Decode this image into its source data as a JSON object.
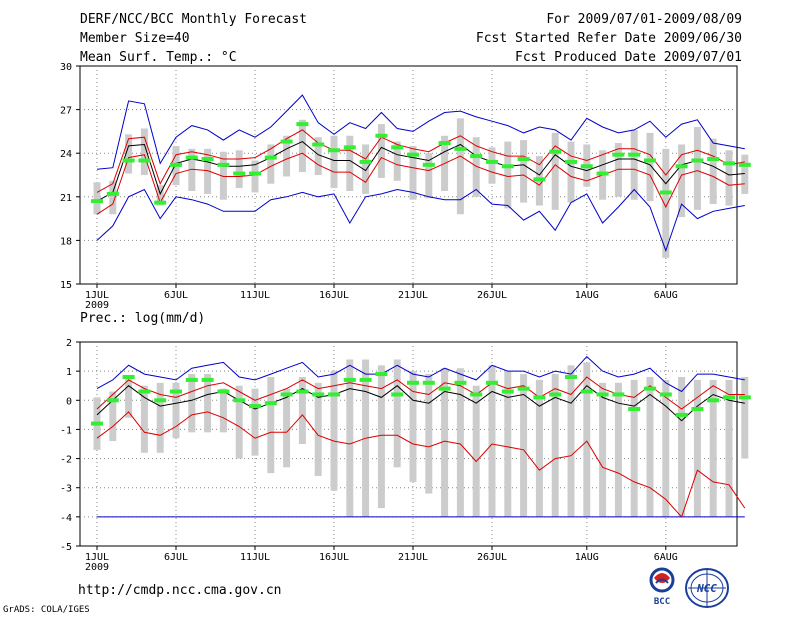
{
  "header": {
    "model": "DERF/NCC/BCC Monthly Forecast",
    "members": "Member Size=40",
    "variable": "Mean Surf. Temp.: °C",
    "period": "For 2009/07/01-2009/08/09",
    "refer_date": "Fcst Started Refer Date 2009/06/30",
    "produced_date": "Fcst Produced Date 2009/07/01"
  },
  "precip_title": "Prec.: log(mm/d)",
  "footer": {
    "url": "http://cmdp.ncc.cma.gov.cn",
    "grads": "GrADS: COLA/IGES",
    "logo_bcc": "BCC",
    "logo_ncc": "NCC"
  },
  "colors": {
    "box": "#cccccc",
    "median": "#33ee33",
    "mean": "#000000",
    "spread": "#dd0000",
    "extreme": "#0000cc",
    "grid": "#888888"
  },
  "chart_data": [
    {
      "type": "line",
      "title": "Mean Surf. Temp.: °C",
      "xlabel": "",
      "ylabel": "°C",
      "ylim": [
        15,
        30
      ],
      "yticks": [
        15,
        18,
        21,
        24,
        27,
        30
      ],
      "grid": true,
      "x_ticks": [
        {
          "day": 1,
          "label": "1JUL"
        },
        {
          "day": 6,
          "label": "6JUL"
        },
        {
          "day": 11,
          "label": "11JUL"
        },
        {
          "day": 16,
          "label": "16JUL"
        },
        {
          "day": 21,
          "label": "21JUL"
        },
        {
          "day": 26,
          "label": "26JUL"
        },
        {
          "day": 32,
          "label": "1AUG"
        },
        {
          "day": 37,
          "label": "6AUG"
        }
      ],
      "year_label": "2009",
      "series": [
        {
          "name": "max",
          "values": [
            18,
            19,
            21,
            21.5,
            19.5,
            21,
            20.8,
            20.5,
            20,
            20,
            20,
            20.8,
            21,
            21.3,
            21,
            21.2,
            19.2,
            21,
            21.2,
            21.5,
            21.3,
            21,
            20.8,
            20.8,
            21.5,
            20.5,
            20.4,
            19.4,
            20,
            18.7,
            20.6,
            21.2,
            19.2,
            20.3,
            21.5,
            20.3,
            17.3,
            20.5,
            19.5,
            20,
            20.2,
            20.4
          ]
        },
        {
          "name": "min",
          "values": [
            22.9,
            23,
            27.6,
            27.4,
            23.3,
            25.1,
            25.9,
            25.6,
            24.9,
            25.6,
            25.1,
            25.8,
            26.9,
            28,
            26.1,
            25.3,
            26.1,
            25.7,
            26.8,
            25.7,
            25.5,
            26.2,
            26.8,
            26.9,
            26.5,
            26.2,
            25.9,
            25.4,
            25.8,
            25.6,
            24.9,
            26.4,
            25.8,
            25.4,
            25.6,
            26.2,
            25.1,
            26,
            26.3,
            24.7,
            24.5,
            24.3
          ]
        }
      ],
      "mean": [
        20.7,
        21.3,
        24.5,
        24.6,
        21.2,
        23.3,
        23.6,
        23.4,
        23.1,
        23.1,
        23.2,
        23.7,
        24.3,
        24.8,
        23.9,
        23.5,
        23.5,
        22.8,
        24.4,
        23.9,
        23.7,
        23.5,
        24.1,
        24.6,
        23.8,
        23.4,
        23.1,
        23.2,
        22.5,
        23.9,
        23.1,
        22.8,
        23.2,
        23.6,
        23.6,
        23.2,
        21.9,
        23.2,
        23.5,
        23.1,
        22.5,
        22.6
      ],
      "upper": [
        21.3,
        21.9,
        25,
        25.1,
        21.9,
        23.9,
        24.1,
        23.9,
        23.6,
        23.6,
        23.7,
        24.3,
        25,
        25.6,
        24.7,
        24.2,
        24.2,
        23.6,
        25.1,
        24.6,
        24.3,
        24.1,
        24.7,
        25.2,
        24.5,
        24.1,
        23.8,
        23.8,
        23.2,
        24.5,
        23.8,
        23.5,
        23.9,
        24.3,
        24.3,
        23.9,
        22.5,
        23.9,
        24.2,
        23.8,
        23.2,
        23.4
      ],
      "lower": [
        19.8,
        20.5,
        23.7,
        23.9,
        20.6,
        22.6,
        22.9,
        22.8,
        22.4,
        22.4,
        22.5,
        23.1,
        23.6,
        24,
        23.2,
        22.7,
        22.7,
        22,
        23.7,
        23.2,
        23,
        22.8,
        23.3,
        23.8,
        23.1,
        22.7,
        22.4,
        22.5,
        21.8,
        23.2,
        22.4,
        22.1,
        22.5,
        22.9,
        22.9,
        22.5,
        20.3,
        22.5,
        22.8,
        22.4,
        21.8,
        21.9
      ],
      "median": [
        20.7,
        21.2,
        23.5,
        23.5,
        20.6,
        23.2,
        23.7,
        23.6,
        23.2,
        22.6,
        22.6,
        23.7,
        24.8,
        26,
        24.6,
        24.2,
        24.4,
        23.4,
        25.2,
        24.4,
        23.9,
        23.2,
        24.7,
        24.3,
        23.8,
        23.4,
        23.1,
        23.6,
        22.2,
        24.1,
        23.4,
        23.1,
        22.6,
        23.9,
        23.9,
        23.5,
        21.3,
        23.1,
        23.5,
        23.6,
        23.3,
        23.2
      ],
      "box_high": [
        22,
        22.1,
        25.3,
        25.7,
        21.8,
        24.5,
        24.3,
        24.3,
        24.1,
        24.2,
        23.5,
        24.6,
        25.2,
        26.3,
        25.1,
        25.2,
        25.2,
        24.6,
        26,
        24.8,
        24.5,
        24,
        25.2,
        26.4,
        25.1,
        24.4,
        24.8,
        24.9,
        23.8,
        25.4,
        24.8,
        24.6,
        24.2,
        24.7,
        25.6,
        25.4,
        24.3,
        24.6,
        25.8,
        25,
        24.2,
        23.9
      ],
      "box_low": [
        19.8,
        19.8,
        22.6,
        22.5,
        20.4,
        21.8,
        21.4,
        21.2,
        20.8,
        21.6,
        21.3,
        21.9,
        22.4,
        22.7,
        22.5,
        21.6,
        21.4,
        21.2,
        22.3,
        22.1,
        20.8,
        20.9,
        21.4,
        19.8,
        21,
        21.9,
        20.2,
        20.6,
        20.4,
        20.1,
        20.6,
        21.7,
        20.8,
        21,
        20.8,
        20.7,
        16.8,
        19.6,
        20.1,
        20.5,
        20.4,
        21.2
      ]
    },
    {
      "type": "line",
      "title": "Prec.: log(mm/d)",
      "xlabel": "",
      "ylabel": "log(mm/d)",
      "ylim": [
        -5,
        2
      ],
      "yticks": [
        -5,
        -4,
        -3,
        -2,
        -1,
        0,
        1,
        2
      ],
      "grid": true,
      "x_ticks": [
        {
          "day": 1,
          "label": "1JUL"
        },
        {
          "day": 6,
          "label": "6JUL"
        },
        {
          "day": 11,
          "label": "11JUL"
        },
        {
          "day": 16,
          "label": "16JUL"
        },
        {
          "day": 21,
          "label": "21JUL"
        },
        {
          "day": 26,
          "label": "26JUL"
        },
        {
          "day": 32,
          "label": "1AUG"
        },
        {
          "day": 37,
          "label": "6AUG"
        }
      ],
      "year_label": "2009",
      "series": [
        {
          "name": "max",
          "values": [
            0.4,
            0.7,
            1.2,
            0.9,
            0.8,
            0.7,
            1.1,
            1.2,
            1.3,
            0.8,
            0.7,
            0.9,
            1.1,
            1.3,
            0.8,
            0.9,
            1.2,
            0.9,
            0.9,
            1.2,
            0.9,
            0.8,
            1.1,
            0.9,
            0.7,
            1.2,
            1,
            1,
            0.8,
            1,
            0.9,
            1.5,
            1,
            0.8,
            0.9,
            1.1,
            0.6,
            0.3,
            0.9,
            0.9,
            0.8,
            0.7
          ]
        },
        {
          "name": "min",
          "values": [
            -4,
            -4,
            -4,
            -4,
            -4,
            -4,
            -4,
            -4,
            -4,
            -4,
            -4,
            -4,
            -4,
            -4,
            -4,
            -4,
            -4,
            -4,
            -4,
            -4,
            -4,
            -4,
            -4,
            -4,
            -4,
            -4,
            -4,
            -4,
            -4,
            -4,
            -4,
            -4,
            -4,
            -4,
            -4,
            -4,
            -4,
            -4,
            -4,
            -4,
            -4,
            -4
          ]
        }
      ],
      "mean": [
        -0.5,
        0,
        0.5,
        0.1,
        -0.2,
        -0.1,
        0,
        0.2,
        0.3,
        0,
        -0.3,
        -0.1,
        0.1,
        0.4,
        0.1,
        0.2,
        0.4,
        0.3,
        0.1,
        0.5,
        0,
        -0.1,
        0.3,
        0.2,
        -0.1,
        0.3,
        0.1,
        0.2,
        -0.2,
        0.1,
        -0.1,
        0.5,
        0.1,
        -0.1,
        -0.2,
        0.2,
        -0.2,
        -0.7,
        -0.2,
        0.2,
        0,
        -0.1
      ],
      "upper": [
        -0.3,
        0.2,
        0.7,
        0.4,
        0.2,
        0.1,
        0.3,
        0.5,
        0.6,
        0.3,
        0,
        0.2,
        0.4,
        0.7,
        0.4,
        0.5,
        0.6,
        0.5,
        0.4,
        0.7,
        0.3,
        0.2,
        0.6,
        0.5,
        0.2,
        0.6,
        0.4,
        0.5,
        0.1,
        0.4,
        0.2,
        0.8,
        0.4,
        0.2,
        0.1,
        0.5,
        0.1,
        -0.3,
        0.1,
        0.5,
        0.2,
        0.2
      ],
      "lower": [
        -1.3,
        -0.9,
        -0.4,
        -1.1,
        -1.2,
        -0.9,
        -0.5,
        -0.4,
        -0.6,
        -0.9,
        -1.3,
        -1.1,
        -1.1,
        -0.5,
        -1.2,
        -1.4,
        -1.5,
        -1.3,
        -1.2,
        -1.2,
        -1.5,
        -1.6,
        -1.4,
        -1.5,
        -2.1,
        -1.5,
        -1.6,
        -1.7,
        -2.4,
        -2.0,
        -1.9,
        -1.4,
        -2.3,
        -2.5,
        -2.8,
        -3.0,
        -3.4,
        -4.0,
        -2.4,
        -2.8,
        -2.9,
        -3.7
      ],
      "median": [
        -0.8,
        0,
        0.8,
        0.3,
        0,
        0.3,
        0.7,
        0.7,
        0.3,
        0,
        -0.2,
        -0.1,
        0.2,
        0.3,
        0.2,
        0.2,
        0.7,
        0.7,
        0.9,
        0.2,
        0.6,
        0.6,
        0.4,
        0.6,
        0.2,
        0.6,
        0.3,
        0.4,
        0.1,
        0.2,
        0.8,
        0.3,
        0.2,
        0.2,
        -0.3,
        0.4,
        0.2,
        -0.5,
        -0.3,
        0,
        0.1,
        0.1
      ],
      "box_high": [
        0.1,
        0.3,
        0.8,
        0.5,
        0.6,
        0.6,
        0.9,
        0.9,
        0.4,
        0.5,
        0.4,
        0.8,
        0.4,
        0.8,
        0.6,
        1,
        1.4,
        1.4,
        1.2,
        1.4,
        1,
        0.9,
        1.1,
        1.1,
        0.5,
        1.2,
        1,
        0.9,
        0.7,
        0.9,
        1.2,
        1.3,
        0.6,
        0.6,
        0.7,
        0.8,
        0.7,
        0.8,
        0.7,
        0.7,
        0.7,
        0.8
      ],
      "box_low": [
        -1.7,
        -1.4,
        -0.6,
        -1.8,
        -1.8,
        -1.3,
        -1.1,
        -1.1,
        -1.1,
        -2,
        -1.9,
        -2.5,
        -2.3,
        -1.5,
        -2.6,
        -3.1,
        -4,
        -4,
        -3.7,
        -2.3,
        -2.8,
        -3.2,
        -4,
        -4,
        -4,
        -4,
        -4,
        -4,
        -4,
        -4,
        -4,
        -4,
        -4,
        -4,
        -4,
        -4,
        -4,
        -4,
        -4,
        -4,
        -4,
        -2
      ]
    }
  ]
}
